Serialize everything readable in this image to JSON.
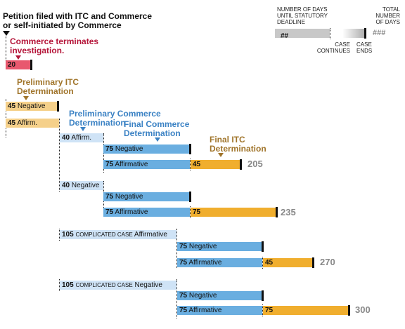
{
  "header": {
    "start_line1": "Petition filed with ITC and Commerce",
    "start_line2": "or self-initiated by Commerce"
  },
  "legend": {
    "days_label": [
      "NUMBER OF DAYS",
      "UNTIL STATUTORY",
      "DEADLINE"
    ],
    "days_sample": "##",
    "total_label": [
      "TOTAL",
      "NUMBER",
      "OF DAYS"
    ],
    "total_sample": "###",
    "case_continues": [
      "CASE",
      "CONTINUES"
    ],
    "case_ends": [
      "CASE",
      "ENDS"
    ]
  },
  "stages": {
    "commerce_terminates": [
      "Commerce terminates",
      "investigation."
    ],
    "prelim_itc": [
      "Preliminary ITC",
      "Determination"
    ],
    "prelim_commerce": [
      "Preliminary Commerce",
      "Determination"
    ],
    "final_commerce": [
      "Final Commerce",
      "Determination"
    ],
    "final_itc": [
      "Final ITC",
      "Determination"
    ]
  },
  "bars": {
    "terminate": "20",
    "prelim_itc_neg_num": "45",
    "prelim_itc_neg_text": "Negative",
    "prelim_itc_aff_num": "45",
    "prelim_itc_aff_text": "Affirm.",
    "pc_aff_num": "40",
    "pc_aff_text": "Affirm.",
    "pc_neg_num": "40",
    "pc_neg_text": "Negative",
    "cc1_num": "105",
    "cc_text": "COMPLICATED CASE",
    "cc1_text": "Affirmative",
    "cc2_num": "105",
    "cc2_text": "Negative",
    "fc_num": "75",
    "fc_neg": "Negative",
    "fc_aff": "Affirmative",
    "fitc_num": "45",
    "fitc_num2": "75"
  },
  "totals": {
    "t1": "205",
    "t2": "235",
    "t3": "270",
    "t4": "300"
  },
  "colors": {
    "terminate": "#e8586e",
    "prelim_itc": "#f5d08a",
    "prelim_commerce": "#cfe3f6",
    "final_commerce": "#6aaee0",
    "final_itc": "#f0ae2e"
  }
}
